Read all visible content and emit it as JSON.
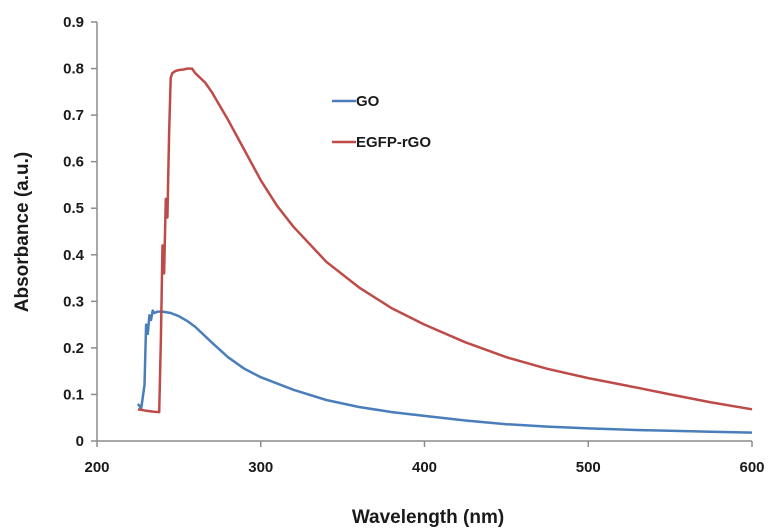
{
  "chart_data": {
    "type": "line",
    "title": "",
    "xlabel": "Wavelength (nm)",
    "ylabel": "Absorbance (a.u.)",
    "xlim": [
      200,
      600
    ],
    "ylim": [
      0,
      0.9
    ],
    "x_ticks": [
      200,
      300,
      400,
      500,
      600
    ],
    "y_ticks": [
      0,
      0.1,
      0.2,
      0.3,
      0.4,
      0.5,
      0.6,
      0.7,
      0.8,
      0.9
    ],
    "x_tick_labels": [
      "200",
      "300",
      "400",
      "500",
      "600"
    ],
    "y_tick_labels": [
      "0",
      "0.1",
      "0.2",
      "0.3",
      "0.4",
      "0.5",
      "0.6",
      "0.7",
      "0.8",
      "0.9"
    ],
    "grid": false,
    "legend_position": "top-center",
    "series": [
      {
        "name": "GO",
        "color": "#4a7ebb",
        "x": [
          225,
          227,
          229,
          230,
          231,
          232,
          233,
          234,
          235,
          237,
          240,
          245,
          250,
          255,
          260,
          270,
          280,
          290,
          300,
          320,
          340,
          360,
          380,
          400,
          425,
          450,
          475,
          500,
          525,
          550,
          575,
          600
        ],
        "y": [
          0.08,
          0.07,
          0.12,
          0.25,
          0.23,
          0.27,
          0.26,
          0.28,
          0.275,
          0.278,
          0.278,
          0.275,
          0.268,
          0.258,
          0.245,
          0.212,
          0.18,
          0.155,
          0.137,
          0.11,
          0.088,
          0.073,
          0.062,
          0.054,
          0.044,
          0.036,
          0.031,
          0.027,
          0.024,
          0.022,
          0.02,
          0.018
        ]
      },
      {
        "name": "EGFP-rGO",
        "color": "#be4b48",
        "x": [
          225,
          230,
          235,
          238,
          239,
          240,
          241,
          242,
          243,
          244,
          245,
          246,
          248,
          250,
          253,
          255,
          258,
          260,
          263,
          266,
          270,
          280,
          290,
          300,
          310,
          320,
          340,
          360,
          380,
          400,
          425,
          450,
          475,
          500,
          525,
          550,
          575,
          600
        ],
        "y": [
          0.068,
          0.065,
          0.063,
          0.062,
          0.22,
          0.42,
          0.36,
          0.52,
          0.48,
          0.66,
          0.78,
          0.79,
          0.795,
          0.797,
          0.798,
          0.8,
          0.8,
          0.79,
          0.78,
          0.77,
          0.75,
          0.69,
          0.625,
          0.56,
          0.505,
          0.46,
          0.385,
          0.33,
          0.285,
          0.25,
          0.212,
          0.18,
          0.155,
          0.135,
          0.118,
          0.1,
          0.083,
          0.068
        ]
      }
    ]
  }
}
